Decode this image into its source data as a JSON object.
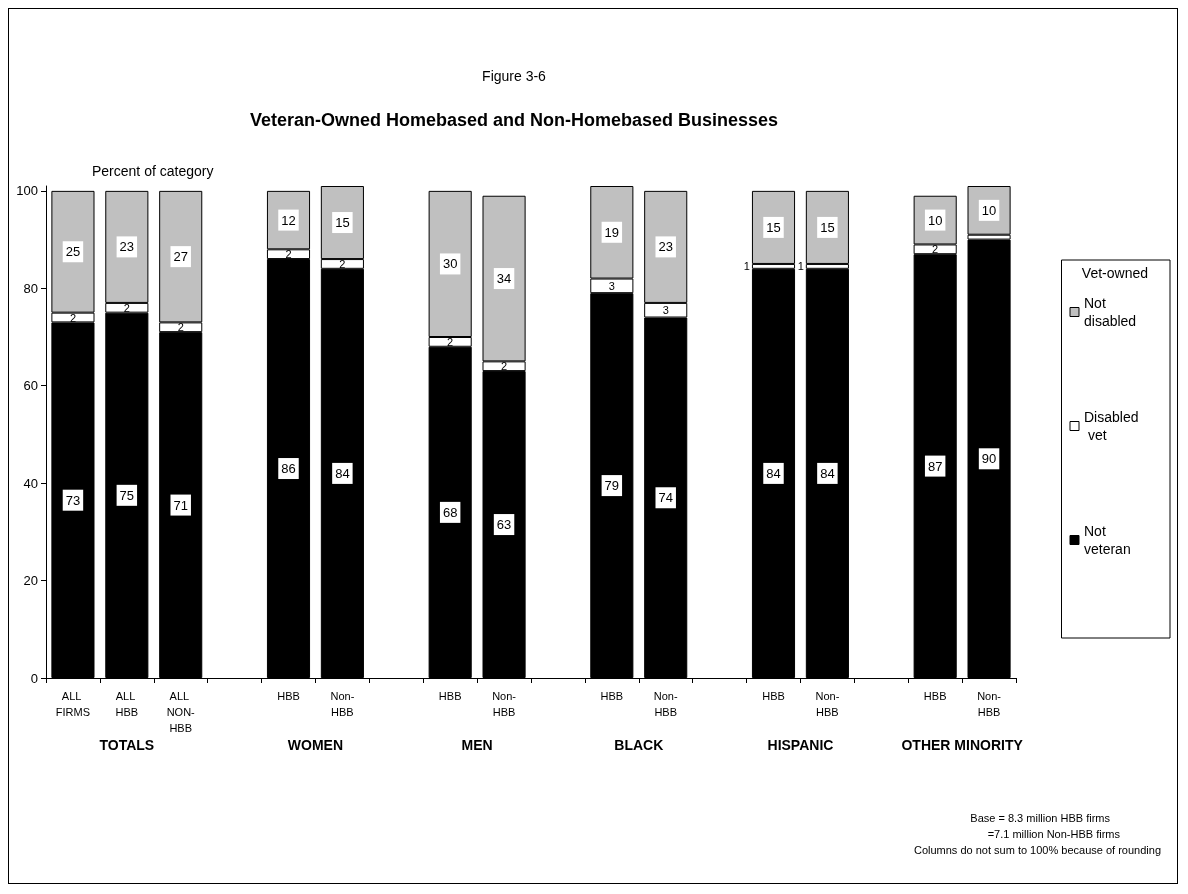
{
  "chart_data": {
    "type": "bar",
    "stacked": true,
    "title": "Veteran-Owned Homebased and Non-Homebased Businesses",
    "subtitle": "Figure 3-6",
    "ylabel": "Percent of category",
    "legend_title": "Vet-owned",
    "categories": [
      "ALL FIRMS",
      "ALL HBB",
      "ALL NON-HBB",
      null,
      "HBB",
      "Non-HBB",
      null,
      "HBB",
      "Non-HBB",
      null,
      "HBB",
      "Non-HBB",
      null,
      "HBB",
      "Non-HBB",
      null,
      "HBB",
      "Non-HBB"
    ],
    "series": [
      {
        "name": "Not veteran",
        "color": "#000000",
        "values": [
          73,
          75,
          71,
          null,
          86,
          84,
          null,
          68,
          63,
          null,
          79,
          74,
          null,
          84,
          84,
          null,
          87,
          90
        ],
        "value_labels": [
          "73",
          "75",
          "71",
          null,
          "86",
          "84",
          null,
          "68",
          "63",
          null,
          "79",
          "74",
          null,
          "84",
          "84",
          null,
          "87",
          "90"
        ]
      },
      {
        "name": "Disabled vet",
        "color": "#ffffff",
        "values": [
          2,
          2,
          2,
          null,
          2,
          2,
          null,
          2,
          2,
          null,
          3,
          3,
          null,
          1,
          1,
          null,
          2,
          1
        ],
        "value_labels": [
          "2",
          "2",
          "2",
          null,
          "2",
          "2",
          null,
          "2",
          "2",
          null,
          "3",
          "3",
          null,
          "1",
          "1",
          null,
          "2",
          null
        ]
      },
      {
        "name": "Not disabled",
        "color": "#c0c0c0",
        "values": [
          25,
          23,
          27,
          null,
          12,
          15,
          null,
          30,
          34,
          null,
          19,
          23,
          null,
          15,
          15,
          null,
          10,
          10
        ],
        "value_labels": [
          "25",
          "23",
          "27",
          null,
          "12",
          "15",
          null,
          "30",
          "34",
          null,
          "19",
          "23",
          null,
          "15",
          "15",
          null,
          "10",
          "10"
        ]
      }
    ],
    "ylim": [
      0,
      101
    ],
    "yticks": [
      0,
      20,
      40,
      60,
      80,
      100
    ],
    "grid": false,
    "legend": "right",
    "annotations": [
      "TOTALS",
      "WOMEN",
      "MEN",
      "BLACK",
      "HISPANIC",
      "OTHER MINORITY",
      "Base = 8.3 million HBB firms",
      "=7.1 million Non-HBB firms",
      "Columns do not sum to 100% because of rounding"
    ]
  }
}
